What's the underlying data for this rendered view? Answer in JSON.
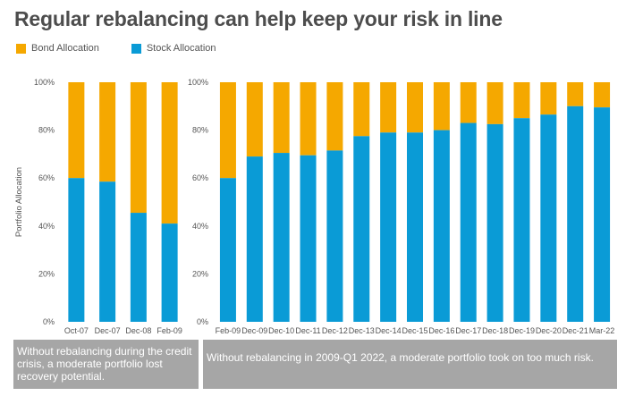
{
  "title": "Regular rebalancing can help keep your risk in line",
  "legend": {
    "bond_label": "Bond Allocation",
    "stock_label": "Stock Allocation"
  },
  "colors": {
    "bond": "#f5a800",
    "stock": "#0a9bd6",
    "note_bg": "#a6a6a6"
  },
  "notes": {
    "left": "Without rebalancing during the credit crisis, a moderate portfolio lost recovery potential.",
    "right": "Without rebalancing in 2009-Q1 2022, a moderate portfolio took on too much risk."
  },
  "chart_data": [
    {
      "type": "bar",
      "stacked": true,
      "title": "",
      "xlabel": "",
      "ylabel": "Portfolio Allocation",
      "ylim": [
        0,
        100
      ],
      "yticks": [
        "0%",
        "20%",
        "40%",
        "60%",
        "80%",
        "100%"
      ],
      "categories": [
        "Oct-07",
        "Dec-07",
        "Dec-08",
        "Feb-09"
      ],
      "series": [
        {
          "name": "Stock Allocation",
          "values": [
            60,
            58.5,
            45.5,
            41
          ]
        },
        {
          "name": "Bond Allocation",
          "values": [
            40,
            41.5,
            54.5,
            59
          ]
        }
      ]
    },
    {
      "type": "bar",
      "stacked": true,
      "title": "",
      "xlabel": "",
      "ylabel": "",
      "ylim": [
        0,
        100
      ],
      "yticks": [
        "0%",
        "20%",
        "40%",
        "60%",
        "80%",
        "100%"
      ],
      "categories": [
        "Feb-09",
        "Dec-09",
        "Dec-10",
        "Dec-11",
        "Dec-12",
        "Dec-13",
        "Dec-14",
        "Dec-15",
        "Dec-16",
        "Dec-17",
        "Dec-18",
        "Dec-19",
        "Dec-20",
        "Dec-21",
        "Mar-22"
      ],
      "series": [
        {
          "name": "Stock Allocation",
          "values": [
            60,
            69,
            70.5,
            69.5,
            71.5,
            77.5,
            79,
            79,
            80,
            83,
            82.5,
            85,
            86.5,
            90,
            89.5
          ]
        },
        {
          "name": "Bond Allocation",
          "values": [
            40,
            31,
            29.5,
            30.5,
            28.5,
            22.5,
            21,
            21,
            20,
            17,
            17.5,
            15,
            13.5,
            10,
            10.5
          ]
        }
      ]
    }
  ]
}
